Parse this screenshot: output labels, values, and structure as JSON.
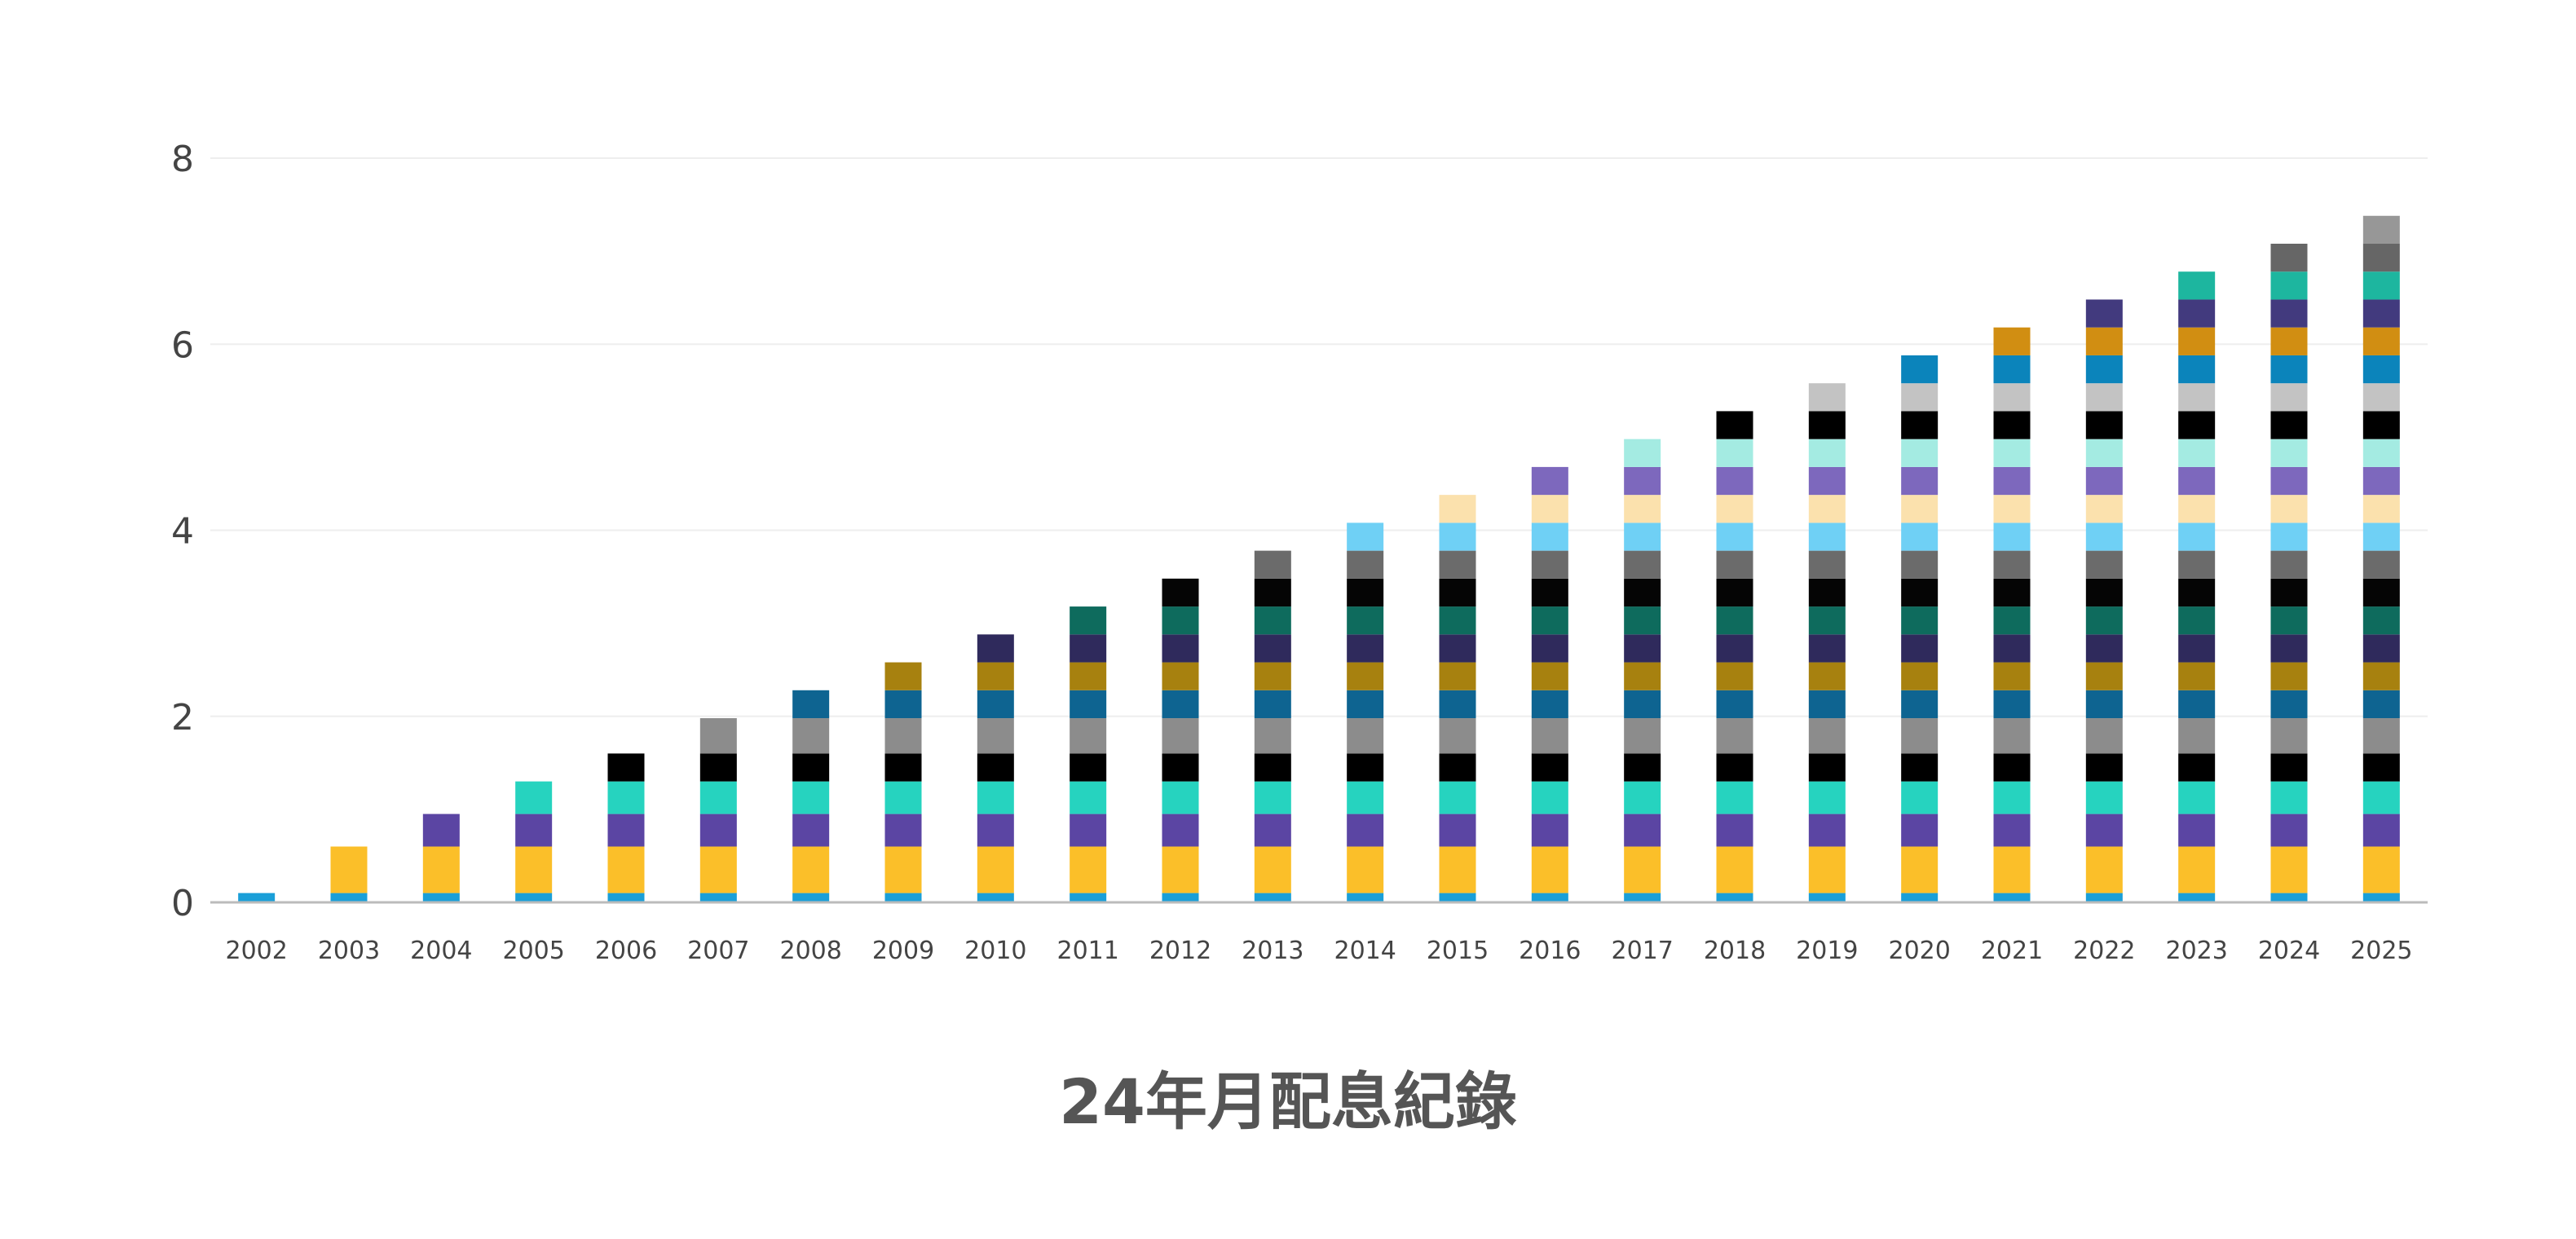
{
  "chart_data": {
    "type": "bar",
    "stacked": true,
    "title": "24年月配息紀錄",
    "xlabel": "",
    "ylabel": "",
    "ylim": [
      0,
      8
    ],
    "yticks": [
      0,
      2,
      4,
      6,
      8
    ],
    "grid": true,
    "legend": "none",
    "categories": [
      "2002",
      "2003",
      "2004",
      "2005",
      "2006",
      "2007",
      "2008",
      "2009",
      "2010",
      "2011",
      "2012",
      "2013",
      "2014",
      "2015",
      "2016",
      "2017",
      "2018",
      "2019",
      "2020",
      "2021",
      "2022",
      "2023",
      "2024",
      "2025"
    ],
    "series": [
      {
        "color": "#1a9fd8",
        "values": [
          0.1,
          0.1,
          0.1,
          0.1,
          0.1,
          0.1,
          0.1,
          0.1,
          0.1,
          0.1,
          0.1,
          0.1,
          0.1,
          0.1,
          0.1,
          0.1,
          0.1,
          0.1,
          0.1,
          0.1,
          0.1,
          0.1,
          0.1,
          0.1
        ]
      },
      {
        "color": "#fbbf29",
        "values": [
          0,
          0.5,
          0.5,
          0.5,
          0.5,
          0.5,
          0.5,
          0.5,
          0.5,
          0.5,
          0.5,
          0.5,
          0.5,
          0.5,
          0.5,
          0.5,
          0.5,
          0.5,
          0.5,
          0.5,
          0.5,
          0.5,
          0.5,
          0.5
        ]
      },
      {
        "color": "#5b45a3",
        "values": [
          0,
          0,
          0.35,
          0.35,
          0.35,
          0.35,
          0.35,
          0.35,
          0.35,
          0.35,
          0.35,
          0.35,
          0.35,
          0.35,
          0.35,
          0.35,
          0.35,
          0.35,
          0.35,
          0.35,
          0.35,
          0.35,
          0.35,
          0.35
        ]
      },
      {
        "color": "#26d3bf",
        "values": [
          0,
          0,
          0,
          0.35,
          0.35,
          0.35,
          0.35,
          0.35,
          0.35,
          0.35,
          0.35,
          0.35,
          0.35,
          0.35,
          0.35,
          0.35,
          0.35,
          0.35,
          0.35,
          0.35,
          0.35,
          0.35,
          0.35,
          0.35
        ]
      },
      {
        "color": "#000000",
        "values": [
          0,
          0,
          0,
          0,
          0.3,
          0.3,
          0.3,
          0.3,
          0.3,
          0.3,
          0.3,
          0.3,
          0.3,
          0.3,
          0.3,
          0.3,
          0.3,
          0.3,
          0.3,
          0.3,
          0.3,
          0.3,
          0.3,
          0.3
        ]
      },
      {
        "color": "#8c8c8c",
        "values": [
          0,
          0,
          0,
          0,
          0,
          0.38,
          0.38,
          0.38,
          0.38,
          0.38,
          0.38,
          0.38,
          0.38,
          0.38,
          0.38,
          0.38,
          0.38,
          0.38,
          0.38,
          0.38,
          0.38,
          0.38,
          0.38,
          0.38
        ]
      },
      {
        "color": "#0e6491",
        "values": [
          0,
          0,
          0,
          0,
          0,
          0,
          0.3,
          0.3,
          0.3,
          0.3,
          0.3,
          0.3,
          0.3,
          0.3,
          0.3,
          0.3,
          0.3,
          0.3,
          0.3,
          0.3,
          0.3,
          0.3,
          0.3,
          0.3
        ]
      },
      {
        "color": "#a7810f",
        "values": [
          0,
          0,
          0,
          0,
          0,
          0,
          0,
          0.3,
          0.3,
          0.3,
          0.3,
          0.3,
          0.3,
          0.3,
          0.3,
          0.3,
          0.3,
          0.3,
          0.3,
          0.3,
          0.3,
          0.3,
          0.3,
          0.3
        ]
      },
      {
        "color": "#2f2a5c",
        "values": [
          0,
          0,
          0,
          0,
          0,
          0,
          0,
          0,
          0.3,
          0.3,
          0.3,
          0.3,
          0.3,
          0.3,
          0.3,
          0.3,
          0.3,
          0.3,
          0.3,
          0.3,
          0.3,
          0.3,
          0.3,
          0.3
        ]
      },
      {
        "color": "#0e6b5d",
        "values": [
          0,
          0,
          0,
          0,
          0,
          0,
          0,
          0,
          0,
          0.3,
          0.3,
          0.3,
          0.3,
          0.3,
          0.3,
          0.3,
          0.3,
          0.3,
          0.3,
          0.3,
          0.3,
          0.3,
          0.3,
          0.3
        ]
      },
      {
        "color": "#050505",
        "values": [
          0,
          0,
          0,
          0,
          0,
          0,
          0,
          0,
          0,
          0,
          0.3,
          0.3,
          0.3,
          0.3,
          0.3,
          0.3,
          0.3,
          0.3,
          0.3,
          0.3,
          0.3,
          0.3,
          0.3,
          0.3
        ]
      },
      {
        "color": "#6b6b6b",
        "values": [
          0,
          0,
          0,
          0,
          0,
          0,
          0,
          0,
          0,
          0,
          0,
          0.3,
          0.3,
          0.3,
          0.3,
          0.3,
          0.3,
          0.3,
          0.3,
          0.3,
          0.3,
          0.3,
          0.3,
          0.3
        ]
      },
      {
        "color": "#6fd0f5",
        "values": [
          0,
          0,
          0,
          0,
          0,
          0,
          0,
          0,
          0,
          0,
          0,
          0,
          0.3,
          0.3,
          0.3,
          0.3,
          0.3,
          0.3,
          0.3,
          0.3,
          0.3,
          0.3,
          0.3,
          0.3
        ]
      },
      {
        "color": "#fbe1ad",
        "values": [
          0,
          0,
          0,
          0,
          0,
          0,
          0,
          0,
          0,
          0,
          0,
          0,
          0,
          0.3,
          0.3,
          0.3,
          0.3,
          0.3,
          0.3,
          0.3,
          0.3,
          0.3,
          0.3,
          0.3
        ]
      },
      {
        "color": "#7d68bd",
        "values": [
          0,
          0,
          0,
          0,
          0,
          0,
          0,
          0,
          0,
          0,
          0,
          0,
          0,
          0,
          0.3,
          0.3,
          0.3,
          0.3,
          0.3,
          0.3,
          0.3,
          0.3,
          0.3,
          0.3
        ]
      },
      {
        "color": "#a4ebe2",
        "values": [
          0,
          0,
          0,
          0,
          0,
          0,
          0,
          0,
          0,
          0,
          0,
          0,
          0,
          0,
          0,
          0.3,
          0.3,
          0.3,
          0.3,
          0.3,
          0.3,
          0.3,
          0.3,
          0.3
        ]
      },
      {
        "color": "#000000",
        "values": [
          0,
          0,
          0,
          0,
          0,
          0,
          0,
          0,
          0,
          0,
          0,
          0,
          0,
          0,
          0,
          0,
          0.3,
          0.3,
          0.3,
          0.3,
          0.3,
          0.3,
          0.3,
          0.3
        ]
      },
      {
        "color": "#c3c3c3",
        "values": [
          0,
          0,
          0,
          0,
          0,
          0,
          0,
          0,
          0,
          0,
          0,
          0,
          0,
          0,
          0,
          0,
          0,
          0.3,
          0.3,
          0.3,
          0.3,
          0.3,
          0.3,
          0.3
        ]
      },
      {
        "color": "#0b84bb",
        "values": [
          0,
          0,
          0,
          0,
          0,
          0,
          0,
          0,
          0,
          0,
          0,
          0,
          0,
          0,
          0,
          0,
          0,
          0,
          0.3,
          0.3,
          0.3,
          0.3,
          0.3,
          0.3
        ]
      },
      {
        "color": "#d18e12",
        "values": [
          0,
          0,
          0,
          0,
          0,
          0,
          0,
          0,
          0,
          0,
          0,
          0,
          0,
          0,
          0,
          0,
          0,
          0,
          0,
          0.3,
          0.3,
          0.3,
          0.3,
          0.3
        ]
      },
      {
        "color": "#423a7e",
        "values": [
          0,
          0,
          0,
          0,
          0,
          0,
          0,
          0,
          0,
          0,
          0,
          0,
          0,
          0,
          0,
          0,
          0,
          0,
          0,
          0,
          0.3,
          0.3,
          0.3,
          0.3
        ]
      },
      {
        "color": "#1db69f",
        "values": [
          0,
          0,
          0,
          0,
          0,
          0,
          0,
          0,
          0,
          0,
          0,
          0,
          0,
          0,
          0,
          0,
          0,
          0,
          0,
          0,
          0,
          0.3,
          0.3,
          0.3
        ]
      },
      {
        "color": "#666666",
        "values": [
          0,
          0,
          0,
          0,
          0,
          0,
          0,
          0,
          0,
          0,
          0,
          0,
          0,
          0,
          0,
          0,
          0,
          0,
          0,
          0,
          0,
          0,
          0.3,
          0.3
        ]
      },
      {
        "color": "#979797",
        "values": [
          0,
          0,
          0,
          0,
          0,
          0,
          0,
          0,
          0,
          0,
          0,
          0,
          0,
          0,
          0,
          0,
          0,
          0,
          0,
          0,
          0,
          0,
          0,
          0.3
        ]
      }
    ]
  },
  "colors": {
    "gridline": "#eeeeee",
    "axis_line": "#bbbbbb",
    "tick_text": "#444444",
    "title_text": "#555555"
  }
}
